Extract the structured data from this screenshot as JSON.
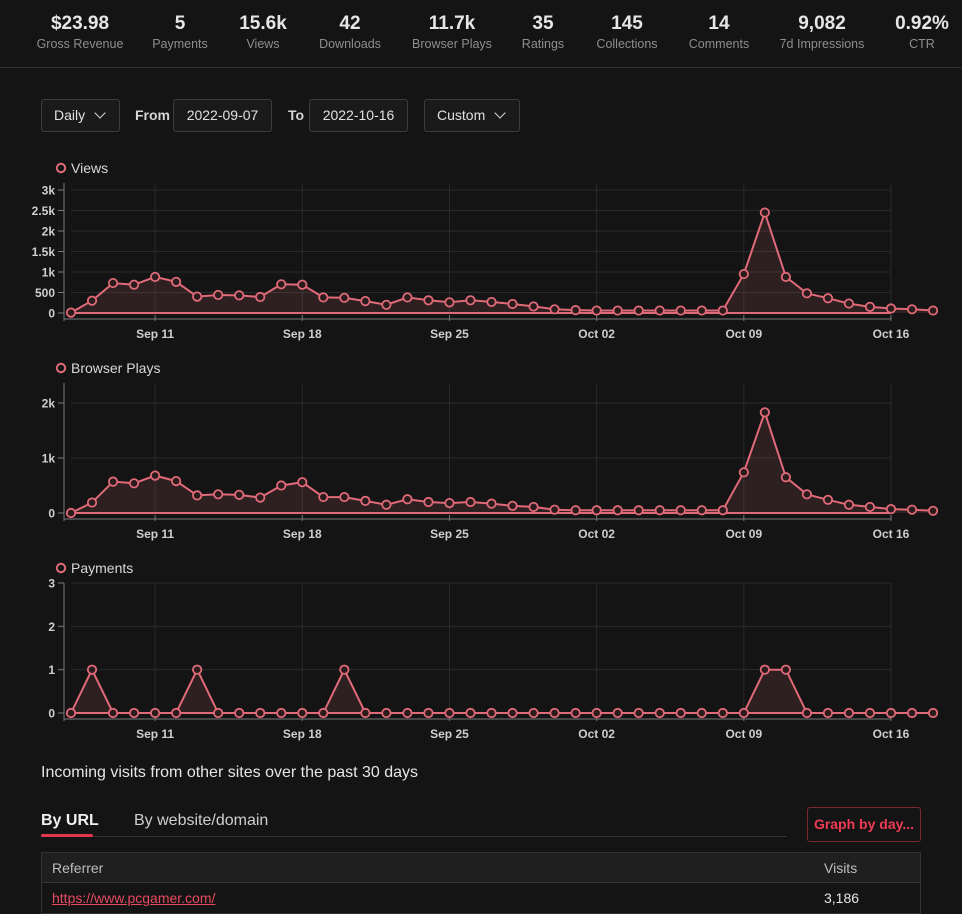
{
  "stats": [
    {
      "value": "$23.98",
      "label": "Gross Revenue"
    },
    {
      "value": "5",
      "label": "Payments"
    },
    {
      "value": "15.6k",
      "label": "Views"
    },
    {
      "value": "42",
      "label": "Downloads"
    },
    {
      "value": "11.7k",
      "label": "Browser Plays"
    },
    {
      "value": "35",
      "label": "Ratings"
    },
    {
      "value": "145",
      "label": "Collections"
    },
    {
      "value": "14",
      "label": "Comments"
    },
    {
      "value": "9,082",
      "label": "7d Impressions"
    },
    {
      "value": "0.92%",
      "label": "CTR"
    }
  ],
  "controls": {
    "interval": "Daily",
    "from_label": "From",
    "from_value": "2022-09-07",
    "to_label": "To",
    "to_value": "2022-10-16",
    "range": "Custom"
  },
  "colors": {
    "accent": "#e3354d",
    "series": "#e06a78",
    "link": "#e84a5f"
  },
  "chart_data": [
    {
      "type": "area",
      "title": "Views",
      "x_range": [
        "2022-09-07",
        "2022-10-16"
      ],
      "x_tick_labels": [
        "Sep 11",
        "Sep 18",
        "Sep 25",
        "Oct 02",
        "Oct 09",
        "Oct 16"
      ],
      "y_tick_labels": [
        "0",
        "500",
        "1k",
        "1.5k",
        "2k",
        "2.5k",
        "3k"
      ],
      "ylim": [
        0,
        3000
      ],
      "grid": true,
      "values": [
        10,
        300,
        730,
        690,
        880,
        760,
        400,
        440,
        430,
        390,
        700,
        690,
        380,
        370,
        290,
        200,
        380,
        310,
        260,
        310,
        270,
        220,
        160,
        90,
        70,
        60,
        60,
        60,
        60,
        60,
        60,
        60,
        950,
        2450,
        880,
        480,
        360,
        230,
        150,
        110,
        90,
        60
      ]
    },
    {
      "type": "area",
      "title": "Browser Plays",
      "x_range": [
        "2022-09-07",
        "2022-10-16"
      ],
      "x_tick_labels": [
        "Sep 11",
        "Sep 18",
        "Sep 25",
        "Oct 02",
        "Oct 09",
        "Oct 16"
      ],
      "y_tick_labels": [
        "0",
        "1k",
        "2k"
      ],
      "ylim": [
        0,
        2000
      ],
      "grid": true,
      "values": [
        0,
        190,
        570,
        540,
        680,
        580,
        320,
        340,
        330,
        280,
        500,
        560,
        290,
        290,
        220,
        150,
        250,
        200,
        180,
        200,
        170,
        130,
        110,
        60,
        50,
        50,
        50,
        50,
        50,
        50,
        50,
        50,
        740,
        1830,
        650,
        340,
        240,
        150,
        110,
        70,
        60,
        40
      ]
    },
    {
      "type": "area",
      "title": "Payments",
      "x_range": [
        "2022-09-07",
        "2022-10-16"
      ],
      "x_tick_labels": [
        "Sep 11",
        "Sep 18",
        "Sep 25",
        "Oct 02",
        "Oct 09",
        "Oct 16"
      ],
      "y_tick_labels": [
        "0",
        "1",
        "2",
        "3"
      ],
      "ylim": [
        0,
        3
      ],
      "grid": true,
      "values": [
        0,
        1,
        0,
        0,
        0,
        0,
        1,
        0,
        0,
        0,
        0,
        0,
        0,
        1,
        0,
        0,
        0,
        0,
        0,
        0,
        0,
        0,
        0,
        0,
        0,
        0,
        0,
        0,
        0,
        0,
        0,
        0,
        0,
        1,
        1,
        0,
        0,
        0,
        0,
        0,
        0,
        0
      ]
    }
  ],
  "referrers": {
    "heading": "Incoming visits from other sites over the past 30 days",
    "tabs": [
      "By URL",
      "By website/domain"
    ],
    "graph_button": "Graph by day...",
    "columns": [
      "Referrer",
      "Visits"
    ],
    "rows": [
      {
        "referrer": "https://www.pcgamer.com/",
        "visits": "3,186"
      }
    ]
  }
}
